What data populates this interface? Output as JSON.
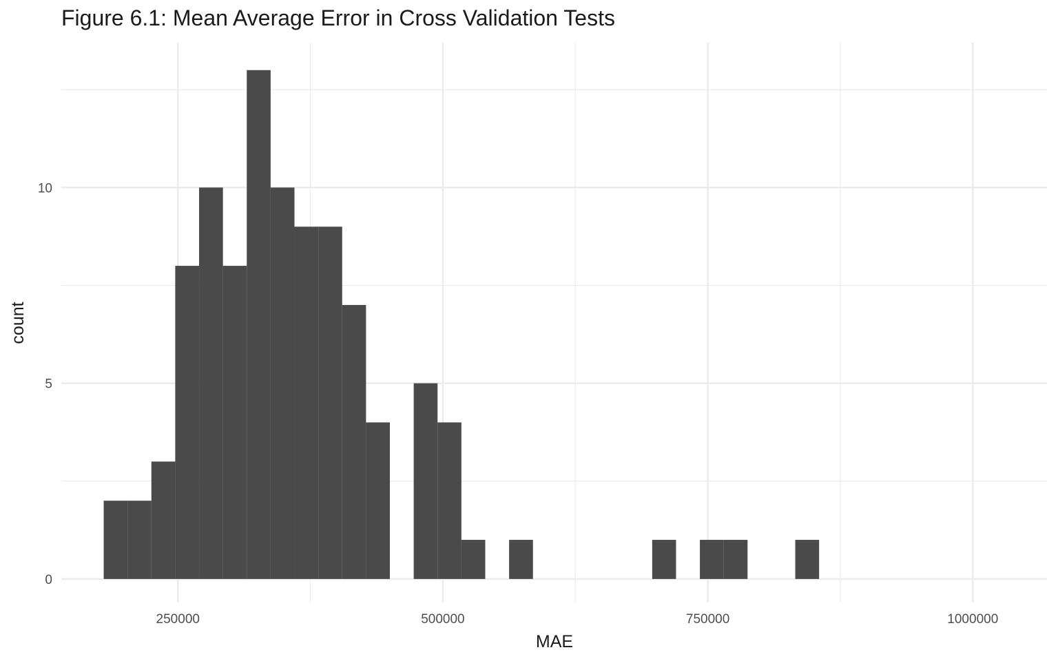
{
  "chart_data": {
    "type": "bar",
    "subtype": "histogram",
    "title": "Figure 6.1: Mean Average Error in Cross Validation Tests",
    "xlabel": "MAE",
    "ylabel": "count",
    "bin_width": 22500,
    "bins": [
      {
        "x0": 180000,
        "x1": 202500,
        "count": 2
      },
      {
        "x0": 202500,
        "x1": 225000,
        "count": 2
      },
      {
        "x0": 225000,
        "x1": 247500,
        "count": 3
      },
      {
        "x0": 247500,
        "x1": 270000,
        "count": 8
      },
      {
        "x0": 270000,
        "x1": 292500,
        "count": 10
      },
      {
        "x0": 292500,
        "x1": 315000,
        "count": 8
      },
      {
        "x0": 315000,
        "x1": 337500,
        "count": 13
      },
      {
        "x0": 337500,
        "x1": 360000,
        "count": 10
      },
      {
        "x0": 360000,
        "x1": 382500,
        "count": 9
      },
      {
        "x0": 382500,
        "x1": 405000,
        "count": 9
      },
      {
        "x0": 405000,
        "x1": 427500,
        "count": 7
      },
      {
        "x0": 427500,
        "x1": 450000,
        "count": 4
      },
      {
        "x0": 450000,
        "x1": 472500,
        "count": 0
      },
      {
        "x0": 472500,
        "x1": 495000,
        "count": 5
      },
      {
        "x0": 495000,
        "x1": 517500,
        "count": 4
      },
      {
        "x0": 517500,
        "x1": 540000,
        "count": 1
      },
      {
        "x0": 540000,
        "x1": 562500,
        "count": 0
      },
      {
        "x0": 562500,
        "x1": 585000,
        "count": 1
      },
      {
        "x0": 585000,
        "x1": 607500,
        "count": 0
      },
      {
        "x0": 607500,
        "x1": 630000,
        "count": 0
      },
      {
        "x0": 630000,
        "x1": 652500,
        "count": 0
      },
      {
        "x0": 652500,
        "x1": 675000,
        "count": 0
      },
      {
        "x0": 675000,
        "x1": 697500,
        "count": 0
      },
      {
        "x0": 697500,
        "x1": 720000,
        "count": 1
      },
      {
        "x0": 720000,
        "x1": 742500,
        "count": 0
      },
      {
        "x0": 742500,
        "x1": 765000,
        "count": 1
      },
      {
        "x0": 765000,
        "x1": 787500,
        "count": 1
      },
      {
        "x0": 787500,
        "x1": 810000,
        "count": 0
      },
      {
        "x0": 810000,
        "x1": 832500,
        "count": 0
      },
      {
        "x0": 832500,
        "x1": 855000,
        "count": 1
      }
    ],
    "x_ticks": [
      250000,
      500000,
      750000,
      1000000
    ],
    "x_tick_labels": [
      "250000",
      "500000",
      "750000",
      "1000000"
    ],
    "y_ticks": [
      0,
      5,
      10
    ],
    "y_tick_labels": [
      "0",
      "5",
      "10"
    ],
    "xlim": [
      140000,
      1070000
    ],
    "ylim": [
      -0.6,
      13.7
    ],
    "grid": true,
    "bar_color": "#4a4a4a",
    "grid_color": "#ebebeb"
  }
}
